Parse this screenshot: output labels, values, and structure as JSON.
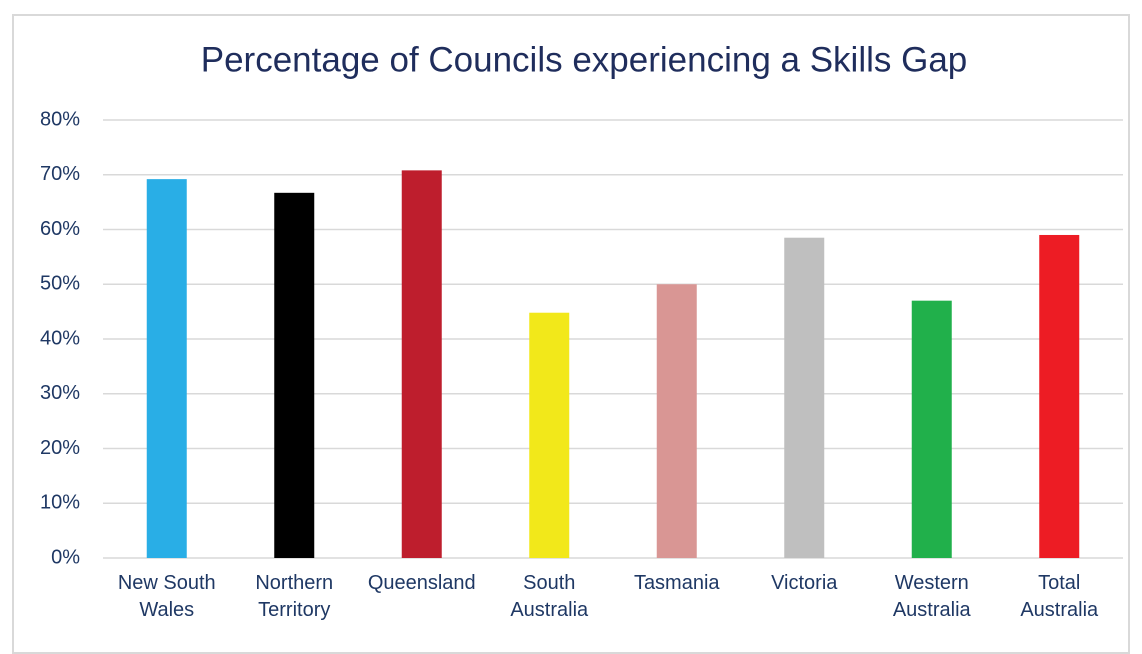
{
  "chart_data": {
    "type": "bar",
    "title": "Percentage of Councils experiencing a Skills Gap",
    "categories": [
      "New South Wales",
      "Northern Territory",
      "Queensland",
      "South Australia",
      "Tasmania",
      "Victoria",
      "Western Australia",
      "Total Australia"
    ],
    "values": [
      69.2,
      66.7,
      70.8,
      44.8,
      50,
      58.5,
      47,
      59
    ],
    "colors": [
      "#29aee6",
      "#000000",
      "#be1e2d",
      "#f2e81a",
      "#d99694",
      "#bfbfbf",
      "#21b04b",
      "#ed1c24"
    ],
    "ylim": [
      0,
      80
    ],
    "yticks": [
      {
        "value": 0,
        "label": "0%"
      },
      {
        "value": 10,
        "label": "10%"
      },
      {
        "value": 20,
        "label": "20%"
      },
      {
        "value": 30,
        "label": "30%"
      },
      {
        "value": 40,
        "label": "40%"
      },
      {
        "value": 50,
        "label": "50%"
      },
      {
        "value": 60,
        "label": "60%"
      },
      {
        "value": 70,
        "label": "70%"
      },
      {
        "value": 80,
        "label": "80%"
      }
    ],
    "grid": true
  }
}
